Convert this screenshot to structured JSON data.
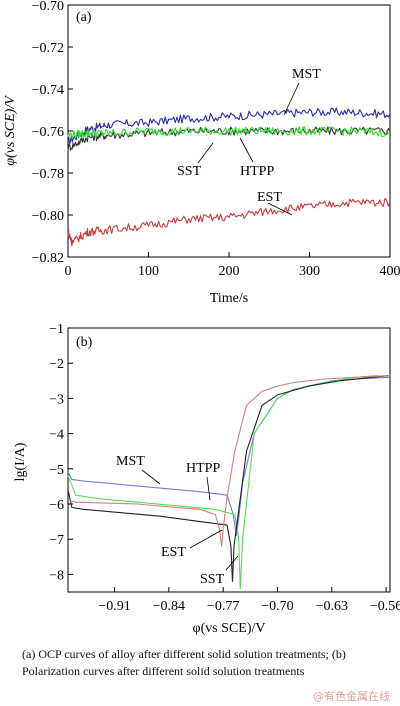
{
  "chart_data": [
    {
      "panel": "(a)",
      "type": "line",
      "xlabel": "Time/s",
      "ylabel": "φ(vs SCE)/V",
      "xlim": [
        0,
        400
      ],
      "ylim": [
        -0.82,
        -0.7
      ],
      "xticks": [
        "0",
        "100",
        "200",
        "300",
        "400"
      ],
      "yticks": [
        "−0.70",
        "−0.72",
        "−0.74",
        "−0.76",
        "−0.78",
        "−0.80",
        "−0.82"
      ],
      "series": [
        {
          "name": "MST",
          "color": "#2b2bb0",
          "x": [
            0,
            25,
            50,
            100,
            150,
            200,
            250,
            300,
            350,
            400
          ],
          "y": [
            -0.765,
            -0.759,
            -0.757,
            -0.756,
            -0.754,
            -0.753,
            -0.752,
            -0.751,
            -0.751,
            -0.752
          ]
        },
        {
          "name": "SST",
          "color": "#333333",
          "x": [
            0,
            25,
            50,
            100,
            150,
            200,
            250,
            300,
            350,
            400
          ],
          "y": [
            -0.768,
            -0.763,
            -0.762,
            -0.761,
            -0.76,
            -0.76,
            -0.76,
            -0.76,
            -0.76,
            -0.76
          ]
        },
        {
          "name": "HTPP",
          "color": "#33dd33",
          "x": [
            0,
            25,
            50,
            100,
            150,
            200,
            250,
            300,
            350,
            400
          ],
          "y": [
            -0.762,
            -0.761,
            -0.761,
            -0.76,
            -0.76,
            -0.76,
            -0.76,
            -0.76,
            -0.76,
            -0.761
          ]
        },
        {
          "name": "EST",
          "color": "#c83c3c",
          "x": [
            0,
            5,
            25,
            50,
            100,
            150,
            200,
            250,
            300,
            350,
            400
          ],
          "y": [
            -0.808,
            -0.813,
            -0.808,
            -0.807,
            -0.805,
            -0.802,
            -0.801,
            -0.798,
            -0.796,
            -0.794,
            -0.794
          ]
        }
      ]
    },
    {
      "panel": "(b)",
      "type": "line",
      "xlabel": "φ(vs SCE)/V",
      "ylabel": "lg(I/A)",
      "xlim": [
        -0.97,
        -0.555
      ],
      "ylim": [
        -8.5,
        -1
      ],
      "xticks": [
        "−0.91",
        "−0.84",
        "−0.77",
        "−0.70",
        "−0.63",
        "−0.56"
      ],
      "yticks": [
        "−1",
        "−2",
        "−3",
        "−4",
        "−5",
        "−6",
        "−7",
        "−8"
      ],
      "series": [
        {
          "name": "MST",
          "color": "#7777dd",
          "x": [
            -0.97,
            -0.965,
            -0.95,
            -0.9,
            -0.85,
            -0.8,
            -0.765,
            -0.757,
            -0.753,
            -0.75,
            -0.745,
            -0.73,
            -0.7,
            -0.68,
            -0.65,
            -0.63,
            -0.6,
            -0.555
          ],
          "y": [
            -5.1,
            -5.3,
            -5.35,
            -5.45,
            -5.55,
            -5.65,
            -5.75,
            -6.3,
            -6.9,
            -6.4,
            -5.4,
            -4.0,
            -3.0,
            -2.75,
            -2.6,
            -2.5,
            -2.45,
            -2.4
          ]
        },
        {
          "name": "HTPP",
          "color": "#55dd55",
          "x": [
            -0.97,
            -0.96,
            -0.93,
            -0.88,
            -0.83,
            -0.78,
            -0.755,
            -0.75,
            -0.748,
            -0.745,
            -0.73,
            -0.7,
            -0.68,
            -0.64,
            -0.6,
            -0.57
          ],
          "y": [
            -5.2,
            -5.75,
            -5.85,
            -5.95,
            -6.05,
            -6.15,
            -6.3,
            -7.0,
            -8.4,
            -7.0,
            -4.0,
            -3.0,
            -2.75,
            -2.55,
            -2.4,
            -2.35
          ]
        },
        {
          "name": "SST",
          "color": "#222222",
          "x": [
            -0.97,
            -0.965,
            -0.95,
            -0.9,
            -0.85,
            -0.8,
            -0.765,
            -0.76,
            -0.758,
            -0.756,
            -0.74,
            -0.72,
            -0.7,
            -0.66,
            -0.62,
            -0.555
          ],
          "y": [
            -5.6,
            -6.1,
            -6.15,
            -6.25,
            -6.35,
            -6.5,
            -6.6,
            -7.2,
            -8.2,
            -7.2,
            -4.5,
            -3.2,
            -2.9,
            -2.65,
            -2.5,
            -2.35
          ]
        },
        {
          "name": "EST",
          "color": "#d08080",
          "x": [
            -0.97,
            -0.96,
            -0.93,
            -0.88,
            -0.83,
            -0.8,
            -0.78,
            -0.775,
            -0.772,
            -0.77,
            -0.765,
            -0.755,
            -0.74,
            -0.72,
            -0.7,
            -0.68,
            -0.66,
            -0.64,
            -0.6,
            -0.555
          ],
          "y": [
            -5.9,
            -5.95,
            -5.97,
            -6.0,
            -6.1,
            -6.15,
            -6.3,
            -6.7,
            -7.2,
            -6.7,
            -5.8,
            -4.5,
            -3.2,
            -2.8,
            -2.65,
            -2.55,
            -2.5,
            -2.45,
            -2.4,
            -2.35
          ]
        }
      ]
    }
  ],
  "panel_a_labels": {
    "mst": "MST",
    "sst": "SST",
    "htpp": "HTPP",
    "est": "EST"
  },
  "panel_b_labels": {
    "mst": "MST",
    "htpp": "HTPP",
    "est": "EST",
    "sst": "SST"
  },
  "caption": "(a) OCP curves of alloy after different solid solution treatments; (b) Polarization curves after different solid solution treatments",
  "watermark": "@有色金属在线"
}
